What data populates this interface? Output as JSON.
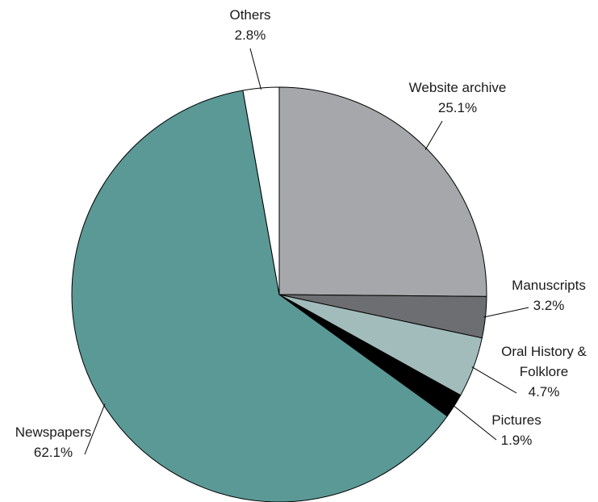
{
  "chart_data": {
    "type": "pie",
    "categories": [
      "Website archive",
      "Manuscripts",
      "Oral History & Folklore",
      "Pictures",
      "Newspapers",
      "Others"
    ],
    "values": [
      25.1,
      3.2,
      4.7,
      1.9,
      62.1,
      2.8
    ],
    "value_labels": [
      "25.1%",
      "3.2%",
      "4.7%",
      "1.9%",
      "62.1%",
      "2.8%"
    ],
    "colors": [
      "#a6a7aa",
      "#6d6e71",
      "#a2bcbc",
      "#000000",
      "#5a9996",
      "#ffffff"
    ]
  }
}
